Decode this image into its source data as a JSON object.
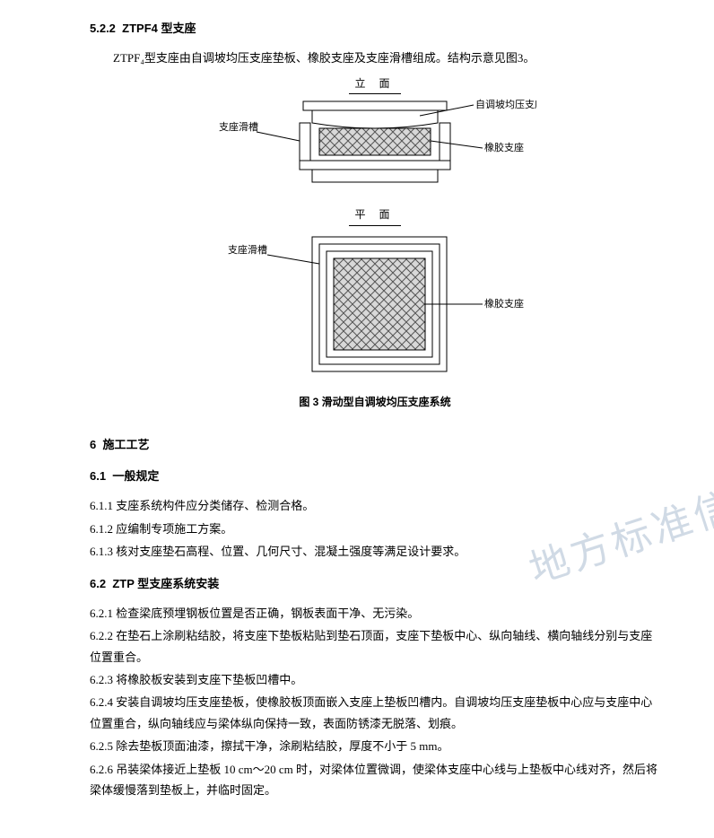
{
  "sec522": {
    "num": "5.2.2",
    "title": "ZTPF4 型支座"
  },
  "intro522": "ZTPF₄型支座由自调坡均压支座垫板、橡胶支座及支座滑槽组成。结构示意见图3。",
  "fig": {
    "elevTitle": "立 面",
    "planTitle": "平 面",
    "caption": "图 3  滑动型自调坡均压支座系统",
    "labelPad": "自调坡均压支座垫板",
    "labelChute": "支座滑槽",
    "labelRubber": "橡胶支座",
    "colors": {
      "stroke": "#000000",
      "hatchFill": "#cfcfcf"
    }
  },
  "sec6": {
    "num": "6",
    "title": "施工工艺"
  },
  "sec61": {
    "num": "6.1",
    "title": "一般规定"
  },
  "items61": [
    {
      "num": "6.1.1",
      "text": "支座系统构件应分类储存、检测合格。"
    },
    {
      "num": "6.1.2",
      "text": "应编制专项施工方案。"
    },
    {
      "num": "6.1.3",
      "text": "核对支座垫石高程、位置、几何尺寸、混凝土强度等满足设计要求。"
    }
  ],
  "sec62": {
    "num": "6.2",
    "title": "ZTP 型支座系统安装"
  },
  "items62": [
    {
      "num": "6.2.1",
      "text": "检查梁底预埋钢板位置是否正确，钢板表面干净、无污染。"
    },
    {
      "num": "6.2.2",
      "text": "在垫石上涂刷粘结胶，将支座下垫板粘贴到垫石顶面，支座下垫板中心、纵向轴线、横向轴线分别与支座位置重合。"
    },
    {
      "num": "6.2.3",
      "text": "将橡胶板安装到支座下垫板凹槽中。"
    },
    {
      "num": "6.2.4",
      "text": "安装自调坡均压支座垫板，使橡胶板顶面嵌入支座上垫板凹槽内。自调坡均压支座垫板中心应与支座中心位置重合，纵向轴线应与梁体纵向保持一致，表面防锈漆无脱落、划痕。"
    },
    {
      "num": "6.2.5",
      "text": "除去垫板顶面油漆，擦拭干净，涂刷粘结胶，厚度不小于 5 mm。"
    },
    {
      "num": "6.2.6",
      "text": "吊装梁体接近上垫板 10 cm～20 cm 时，对梁体位置微调，使梁体支座中心线与上垫板中心线对齐，然后将梁体缓慢落到垫板上，并临时固定。"
    }
  ],
  "watermark": "地方标准信"
}
